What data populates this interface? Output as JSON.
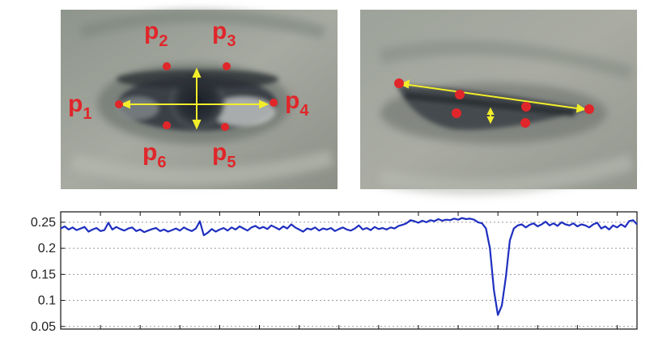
{
  "eye_open": {
    "labels": [
      {
        "key": "p1",
        "base": "p",
        "sub": "1"
      },
      {
        "key": "p2",
        "base": "p",
        "sub": "2"
      },
      {
        "key": "p3",
        "base": "p",
        "sub": "3"
      },
      {
        "key": "p4",
        "base": "p",
        "sub": "4"
      },
      {
        "key": "p5",
        "base": "p",
        "sub": "5"
      },
      {
        "key": "p6",
        "base": "p",
        "sub": "6"
      }
    ]
  },
  "colors": {
    "landmark": "#e0262a",
    "arrow": "#f2ee2a",
    "series": "#1f2fbf",
    "skin": "#9a9f96",
    "grid": "#9a9a9a"
  },
  "chart_data": {
    "type": "line",
    "title": "",
    "xlabel": "",
    "ylabel": "",
    "ylim": [
      0.045,
      0.27
    ],
    "yticks": [
      "0.25",
      "0.2",
      "0.15",
      "0.1",
      "0.05"
    ],
    "ytick_values": [
      0.25,
      0.2,
      0.15,
      0.1,
      0.05
    ],
    "x_tick_count": 14,
    "grid": true,
    "series": [
      {
        "values": [
          0.238,
          0.242,
          0.236,
          0.24,
          0.235,
          0.238,
          0.241,
          0.232,
          0.236,
          0.239,
          0.233,
          0.235,
          0.249,
          0.236,
          0.241,
          0.237,
          0.234,
          0.238,
          0.24,
          0.233,
          0.236,
          0.231,
          0.234,
          0.237,
          0.239,
          0.233,
          0.236,
          0.232,
          0.235,
          0.238,
          0.234,
          0.24,
          0.236,
          0.233,
          0.238,
          0.252,
          0.225,
          0.23,
          0.237,
          0.232,
          0.236,
          0.239,
          0.234,
          0.24,
          0.236,
          0.242,
          0.238,
          0.234,
          0.24,
          0.243,
          0.238,
          0.241,
          0.237,
          0.244,
          0.24,
          0.236,
          0.242,
          0.238,
          0.246,
          0.24,
          0.236,
          0.232,
          0.238,
          0.236,
          0.24,
          0.234,
          0.238,
          0.236,
          0.239,
          0.233,
          0.237,
          0.24,
          0.236,
          0.234,
          0.238,
          0.244,
          0.236,
          0.239,
          0.235,
          0.241,
          0.237,
          0.239,
          0.236,
          0.24,
          0.238,
          0.243,
          0.245,
          0.248,
          0.254,
          0.252,
          0.249,
          0.253,
          0.25,
          0.254,
          0.252,
          0.256,
          0.253,
          0.255,
          0.254,
          0.257,
          0.255,
          0.258,
          0.256,
          0.257,
          0.255,
          0.25,
          0.248,
          0.238,
          0.2,
          0.12,
          0.072,
          0.09,
          0.145,
          0.215,
          0.238,
          0.244,
          0.246,
          0.24,
          0.245,
          0.248,
          0.242,
          0.246,
          0.251,
          0.244,
          0.248,
          0.243,
          0.25,
          0.246,
          0.244,
          0.248,
          0.242,
          0.246,
          0.244,
          0.24,
          0.246,
          0.249,
          0.238,
          0.242,
          0.236,
          0.244,
          0.24,
          0.246,
          0.241,
          0.252,
          0.254,
          0.246
        ]
      }
    ]
  }
}
